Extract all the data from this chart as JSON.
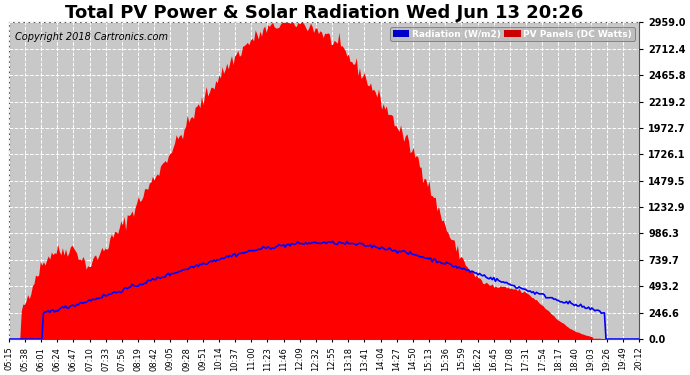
{
  "title": "Total PV Power & Solar Radiation Wed Jun 13 20:26",
  "copyright": "Copyright 2018 Cartronics.com",
  "bg_color": "#ffffff",
  "plot_bg_color": "#c8c8c8",
  "grid_color": "#ffffff",
  "yticks": [
    0.0,
    246.6,
    493.2,
    739.7,
    986.3,
    1232.9,
    1479.5,
    1726.1,
    1972.7,
    2219.2,
    2465.8,
    2712.4,
    2959.0
  ],
  "ymax": 2959.0,
  "fill_color": "#ff0000",
  "line_color": "#0000ff",
  "title_fontsize": 13,
  "copyright_fontsize": 7,
  "xtick_labels": [
    "05:15",
    "05:38",
    "06:01",
    "06:24",
    "06:47",
    "07:10",
    "07:33",
    "07:56",
    "08:19",
    "08:42",
    "09:05",
    "09:28",
    "09:51",
    "10:14",
    "10:37",
    "11:00",
    "11:23",
    "11:46",
    "12:09",
    "12:32",
    "12:55",
    "13:18",
    "13:41",
    "14:04",
    "14:27",
    "14:50",
    "15:13",
    "15:36",
    "15:59",
    "16:22",
    "16:45",
    "17:08",
    "17:31",
    "17:54",
    "18:17",
    "18:40",
    "19:03",
    "19:26",
    "19:49",
    "20:12"
  ],
  "n_points": 400
}
